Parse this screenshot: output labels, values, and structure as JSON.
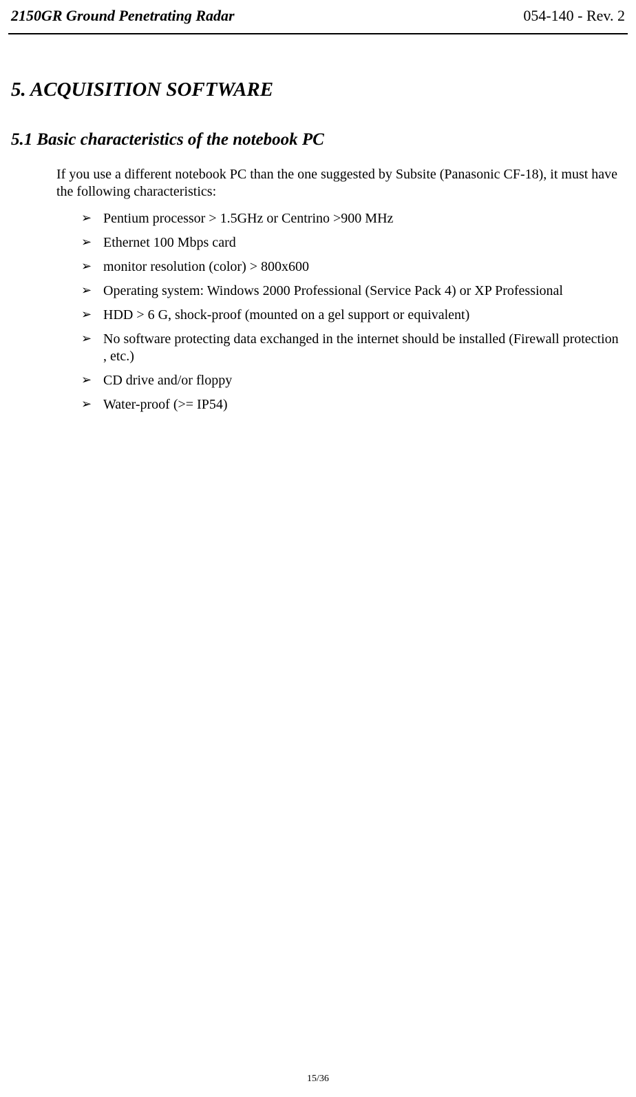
{
  "header": {
    "left": "2150GR Ground Penetrating Radar",
    "right": "054-140 - Rev. 2"
  },
  "chapter": {
    "title": "5. ACQUISITION SOFTWARE"
  },
  "section": {
    "title": "5.1 Basic characteristics of the notebook PC",
    "intro": "If you use a different notebook PC than the one suggested by Subsite (Panasonic CF-18), it must have the following characteristics:",
    "requirements": [
      "Pentium processor > 1.5GHz or Centrino >900 MHz",
      "Ethernet 100 Mbps card",
      "monitor resolution (color) > 800x600",
      "Operating system: Windows 2000 Professional (Service Pack 4) or XP Professional",
      "HDD > 6 G, shock-proof (mounted on a gel support or equivalent)",
      "No software protecting data exchanged in the internet should be installed (Firewall protection , etc.)",
      "CD drive and/or floppy",
      "Water-proof (>= IP54)"
    ]
  },
  "footer": {
    "page": "15/36"
  }
}
